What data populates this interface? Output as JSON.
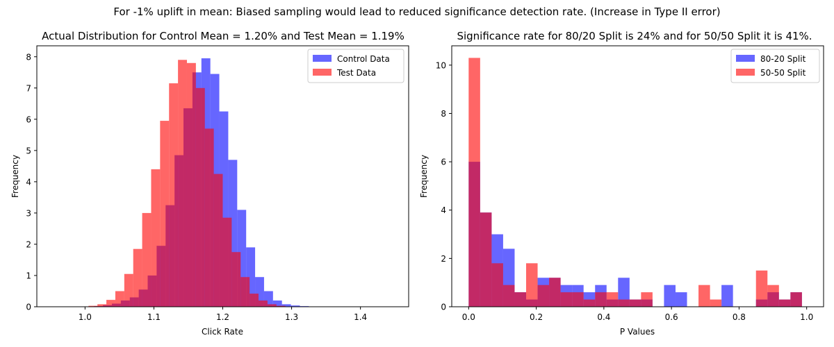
{
  "figure": {
    "suptitle": "For -1% uplift in mean: Biased sampling would lead to reduced significance detection rate. (Increase in Type II error)"
  },
  "chart_data": [
    {
      "type": "histogram",
      "title": "Actual Distribution for Control Mean = 1.20% and Test Mean = 1.19%",
      "xlabel": "Click Rate",
      "ylabel": "Frequency",
      "xlim": [
        0.93,
        1.47
      ],
      "ylim": [
        0,
        8.35
      ],
      "xticks": [
        "1.0",
        "1.1",
        "1.2",
        "1.3",
        "1.4"
      ],
      "xtick_values": [
        1.0,
        1.1,
        1.2,
        1.3,
        1.4
      ],
      "yticks": [
        "0",
        "1",
        "2",
        "3",
        "4",
        "5",
        "6",
        "7",
        "8"
      ],
      "ytick_values": [
        0,
        1,
        2,
        3,
        4,
        5,
        6,
        7,
        8
      ],
      "legend_position": "top-right",
      "series": [
        {
          "name": "Control Data",
          "color": "#0000ff",
          "alpha": 0.6,
          "bins": [
            1.0,
            1.013,
            1.026,
            1.039,
            1.052,
            1.065,
            1.078,
            1.091,
            1.104,
            1.117,
            1.13,
            1.143,
            1.156,
            1.169,
            1.182,
            1.195,
            1.208,
            1.221,
            1.234,
            1.247,
            1.26,
            1.273,
            1.286,
            1.299,
            1.312,
            1.325,
            1.338,
            1.351,
            1.364,
            1.377,
            1.39
          ],
          "values": [
            0.01,
            0.02,
            0.05,
            0.1,
            0.2,
            0.3,
            0.55,
            1.0,
            1.95,
            3.25,
            4.85,
            6.35,
            7.5,
            7.95,
            7.45,
            6.25,
            4.7,
            3.1,
            1.9,
            0.95,
            0.5,
            0.2,
            0.08,
            0.04,
            0.02,
            0.01,
            0.005,
            0.003,
            0.002,
            0.001
          ]
        },
        {
          "name": "Test Data",
          "color": "#ff0000",
          "alpha": 0.6,
          "bins": [
            1.005,
            1.018,
            1.031,
            1.044,
            1.057,
            1.07,
            1.083,
            1.096,
            1.109,
            1.122,
            1.135,
            1.148,
            1.161,
            1.174,
            1.187,
            1.2,
            1.213,
            1.226,
            1.239,
            1.252,
            1.265,
            1.278,
            1.291,
            1.304,
            1.317,
            1.33
          ],
          "values": [
            0.03,
            0.08,
            0.22,
            0.5,
            1.05,
            1.85,
            3.0,
            4.4,
            5.95,
            7.15,
            7.9,
            7.8,
            7.0,
            5.7,
            4.25,
            2.85,
            1.75,
            0.95,
            0.42,
            0.2,
            0.08,
            0.03,
            0.01,
            0.005,
            0.002
          ]
        }
      ]
    },
    {
      "type": "histogram",
      "title": "Significance rate for 80/20 Split is 24% and for 50/50 Split it is 41%.",
      "xlabel": "P Values",
      "ylabel": "Frequency",
      "xlim": [
        -0.05,
        1.05
      ],
      "ylim": [
        0,
        10.8
      ],
      "xticks": [
        "0.0",
        "0.2",
        "0.4",
        "0.6",
        "0.8",
        "1.0"
      ],
      "xtick_values": [
        0.0,
        0.2,
        0.4,
        0.6,
        0.8,
        1.0
      ],
      "yticks": [
        "0",
        "2",
        "4",
        "6",
        "8",
        "10"
      ],
      "ytick_values": [
        0,
        2,
        4,
        6,
        8,
        10
      ],
      "legend_position": "top-right",
      "series": [
        {
          "name": "80-20 Split",
          "color": "#0000ff",
          "alpha": 0.6,
          "bins": [
            0.0,
            0.034,
            0.068,
            0.102,
            0.136,
            0.17,
            0.204,
            0.238,
            0.272,
            0.306,
            0.34,
            0.374,
            0.408,
            0.442,
            0.476,
            0.51,
            0.544,
            0.578,
            0.612,
            0.646,
            0.68,
            0.714,
            0.748,
            0.782,
            0.816,
            0.85,
            0.884,
            0.918,
            0.952,
            0.986
          ],
          "values": [
            6.0,
            3.9,
            3.0,
            2.4,
            0.6,
            0.3,
            1.2,
            1.2,
            0.9,
            0.9,
            0.6,
            0.9,
            0.3,
            1.2,
            0.3,
            0.3,
            0.0,
            0.9,
            0.6,
            0.0,
            0.0,
            0.0,
            0.9,
            0.0,
            0.0,
            0.3,
            0.6,
            0.3,
            0.6
          ]
        },
        {
          "name": "50-50 Split",
          "color": "#ff0000",
          "alpha": 0.6,
          "bins": [
            0.0,
            0.034,
            0.068,
            0.102,
            0.136,
            0.17,
            0.204,
            0.238,
            0.272,
            0.306,
            0.34,
            0.374,
            0.408,
            0.442,
            0.476,
            0.51,
            0.544,
            0.578,
            0.612,
            0.646,
            0.68,
            0.714,
            0.748,
            0.782,
            0.816,
            0.85,
            0.884,
            0.918,
            0.952,
            0.986
          ],
          "values": [
            10.3,
            3.9,
            1.8,
            0.9,
            0.6,
            1.8,
            0.9,
            1.2,
            0.6,
            0.6,
            0.3,
            0.6,
            0.6,
            0.3,
            0.3,
            0.6,
            0.0,
            0.0,
            0.0,
            0.0,
            0.9,
            0.3,
            0.0,
            0.0,
            0.0,
            1.5,
            0.9,
            0.3,
            0.6
          ]
        }
      ]
    }
  ]
}
